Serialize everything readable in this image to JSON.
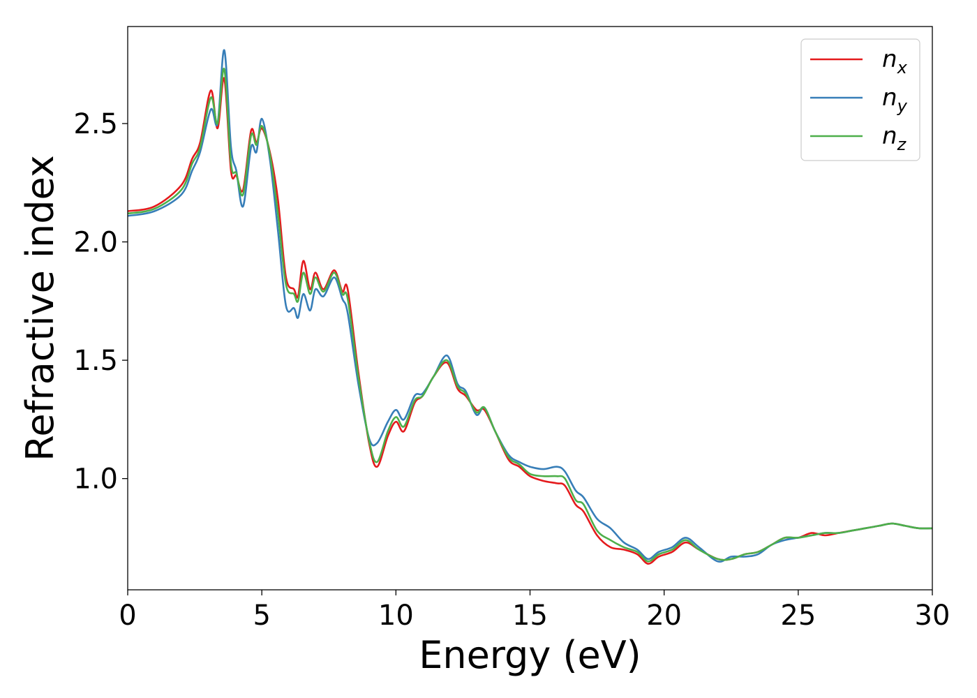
{
  "chart_data": {
    "type": "line",
    "xlabel": "Energy (eV)",
    "ylabel": "Refractive index",
    "xlim": [
      0,
      30
    ],
    "ylim": [
      0.53,
      2.91
    ],
    "xticks": [
      0,
      5,
      10,
      15,
      20,
      25,
      30
    ],
    "xtick_labels": [
      "0",
      "5",
      "10",
      "15",
      "20",
      "25",
      "30"
    ],
    "yticks": [
      1.0,
      1.5,
      2.0,
      2.5
    ],
    "ytick_labels": [
      "1.0",
      "1.5",
      "2.0",
      "2.5"
    ],
    "grid": false,
    "legend_position": "top-right",
    "series": [
      {
        "name": "n",
        "sub": "x",
        "color": "#e41a1c",
        "x": [
          0,
          1.0,
          2.0,
          2.4,
          2.7,
          3.1,
          3.35,
          3.6,
          3.85,
          4.05,
          4.3,
          4.6,
          4.8,
          5.0,
          5.3,
          5.6,
          5.9,
          6.2,
          6.35,
          6.55,
          6.8,
          7.0,
          7.3,
          7.7,
          8.0,
          8.2,
          8.6,
          9.0,
          9.3,
          9.7,
          10.0,
          10.3,
          10.7,
          11.0,
          11.4,
          11.9,
          12.3,
          12.6,
          13.0,
          13.3,
          13.7,
          14.2,
          14.6,
          15.0,
          15.5,
          16.0,
          16.3,
          16.7,
          17.0,
          17.5,
          18.0,
          18.5,
          19.0,
          19.4,
          19.8,
          20.3,
          20.8,
          21.3,
          22.0,
          22.5,
          23.0,
          23.5,
          24.0,
          24.5,
          25.0,
          25.5,
          26.0,
          26.5,
          27.0,
          27.5,
          28.0,
          28.5,
          29.0,
          29.5,
          30.0
        ],
        "y": [
          2.13,
          2.15,
          2.24,
          2.35,
          2.42,
          2.64,
          2.48,
          2.69,
          2.3,
          2.28,
          2.22,
          2.47,
          2.42,
          2.48,
          2.38,
          2.18,
          1.85,
          1.8,
          1.77,
          1.92,
          1.8,
          1.87,
          1.8,
          1.88,
          1.79,
          1.8,
          1.45,
          1.15,
          1.05,
          1.18,
          1.24,
          1.2,
          1.32,
          1.35,
          1.43,
          1.49,
          1.38,
          1.35,
          1.29,
          1.29,
          1.2,
          1.08,
          1.05,
          1.01,
          0.99,
          0.98,
          0.97,
          0.89,
          0.86,
          0.76,
          0.71,
          0.7,
          0.68,
          0.64,
          0.67,
          0.69,
          0.73,
          0.7,
          0.66,
          0.66,
          0.68,
          0.69,
          0.72,
          0.75,
          0.75,
          0.77,
          0.76,
          0.77,
          0.78,
          0.79,
          0.8,
          0.81,
          0.8,
          0.79,
          0.79
        ]
      },
      {
        "name": "n",
        "sub": "y",
        "color": "#377eb8",
        "x": [
          0,
          1.0,
          2.0,
          2.4,
          2.7,
          3.1,
          3.35,
          3.6,
          3.85,
          4.05,
          4.3,
          4.6,
          4.8,
          5.0,
          5.3,
          5.6,
          5.9,
          6.2,
          6.35,
          6.55,
          6.8,
          7.0,
          7.3,
          7.7,
          8.0,
          8.2,
          8.6,
          9.0,
          9.3,
          9.7,
          10.0,
          10.3,
          10.7,
          11.0,
          11.4,
          11.9,
          12.3,
          12.6,
          13.0,
          13.3,
          13.7,
          14.2,
          14.6,
          15.0,
          15.5,
          16.0,
          16.3,
          16.7,
          17.0,
          17.5,
          18.0,
          18.5,
          19.0,
          19.4,
          19.8,
          20.3,
          20.8,
          21.3,
          22.0,
          22.5,
          23.0,
          23.5,
          24.0,
          24.5,
          25.0,
          25.5,
          26.0,
          26.5,
          27.0,
          27.5,
          28.0,
          28.5,
          29.0,
          29.5,
          30.0
        ],
        "y": [
          2.11,
          2.13,
          2.2,
          2.3,
          2.38,
          2.56,
          2.5,
          2.81,
          2.4,
          2.3,
          2.15,
          2.4,
          2.38,
          2.52,
          2.35,
          2.05,
          1.73,
          1.72,
          1.68,
          1.78,
          1.71,
          1.8,
          1.77,
          1.85,
          1.76,
          1.7,
          1.4,
          1.17,
          1.15,
          1.24,
          1.29,
          1.25,
          1.35,
          1.36,
          1.43,
          1.52,
          1.4,
          1.37,
          1.27,
          1.3,
          1.2,
          1.1,
          1.07,
          1.05,
          1.04,
          1.05,
          1.03,
          0.95,
          0.92,
          0.83,
          0.79,
          0.73,
          0.7,
          0.66,
          0.69,
          0.71,
          0.75,
          0.71,
          0.65,
          0.67,
          0.67,
          0.68,
          0.72,
          0.74,
          0.75,
          0.76,
          0.77,
          0.77,
          0.78,
          0.79,
          0.8,
          0.81,
          0.8,
          0.79,
          0.79
        ]
      },
      {
        "name": "n",
        "sub": "z",
        "color": "#4daf4a",
        "x": [
          0,
          1.0,
          2.0,
          2.4,
          2.7,
          3.1,
          3.35,
          3.6,
          3.85,
          4.05,
          4.3,
          4.6,
          4.8,
          5.0,
          5.3,
          5.6,
          5.9,
          6.2,
          6.35,
          6.55,
          6.8,
          7.0,
          7.3,
          7.7,
          8.0,
          8.2,
          8.6,
          9.0,
          9.3,
          9.7,
          10.0,
          10.3,
          10.7,
          11.0,
          11.4,
          11.9,
          12.3,
          12.6,
          13.0,
          13.3,
          13.7,
          14.2,
          14.6,
          15.0,
          15.5,
          16.0,
          16.3,
          16.7,
          17.0,
          17.5,
          18.0,
          18.5,
          19.0,
          19.4,
          19.8,
          20.3,
          20.8,
          21.3,
          22.0,
          22.5,
          23.0,
          23.5,
          24.0,
          24.5,
          25.0,
          25.5,
          26.0,
          26.5,
          27.0,
          27.5,
          28.0,
          28.5,
          29.0,
          29.5,
          30.0
        ],
        "y": [
          2.12,
          2.14,
          2.22,
          2.33,
          2.4,
          2.61,
          2.5,
          2.73,
          2.33,
          2.29,
          2.2,
          2.45,
          2.41,
          2.49,
          2.37,
          2.12,
          1.82,
          1.78,
          1.75,
          1.87,
          1.78,
          1.85,
          1.79,
          1.87,
          1.78,
          1.76,
          1.43,
          1.16,
          1.07,
          1.2,
          1.26,
          1.22,
          1.33,
          1.35,
          1.43,
          1.5,
          1.39,
          1.36,
          1.28,
          1.3,
          1.2,
          1.09,
          1.06,
          1.02,
          1.01,
          1.01,
          1.0,
          0.91,
          0.89,
          0.78,
          0.74,
          0.71,
          0.69,
          0.65,
          0.68,
          0.7,
          0.74,
          0.7,
          0.66,
          0.66,
          0.68,
          0.69,
          0.72,
          0.75,
          0.75,
          0.76,
          0.77,
          0.77,
          0.78,
          0.79,
          0.8,
          0.81,
          0.8,
          0.79,
          0.79
        ]
      }
    ]
  }
}
